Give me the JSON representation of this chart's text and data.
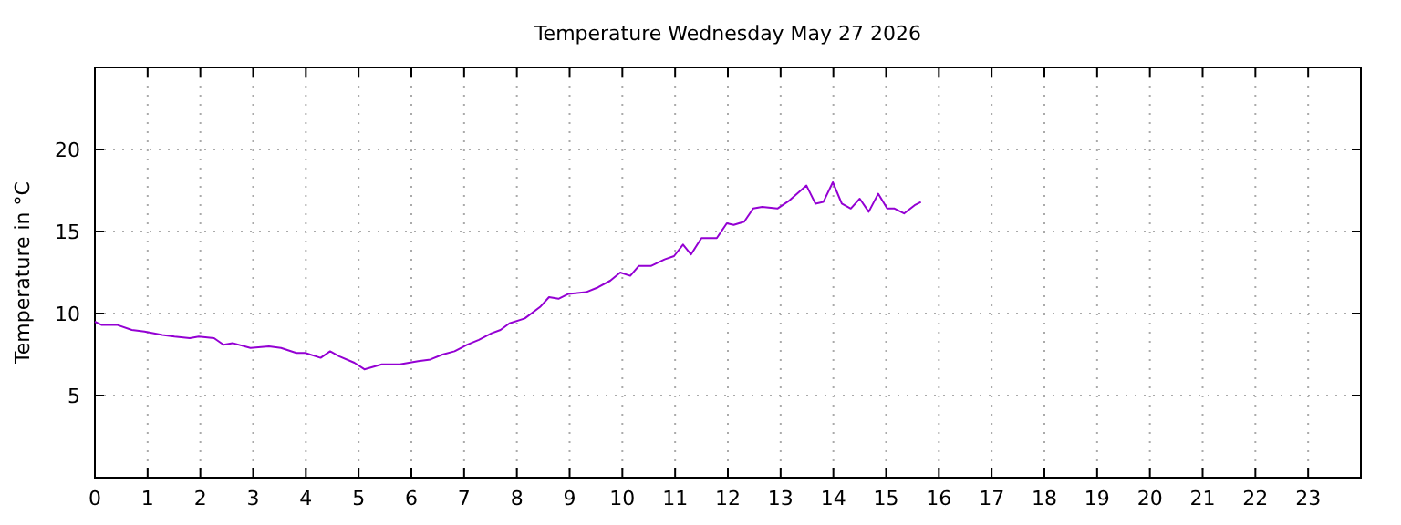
{
  "chart_data": {
    "type": "line",
    "title": "Temperature Wednesday May 27 2026",
    "ylabel": "Temperature in °C",
    "xlim": [
      0,
      24
    ],
    "ylim": [
      0,
      25
    ],
    "xticks": [
      0,
      1,
      2,
      3,
      4,
      5,
      6,
      7,
      8,
      9,
      10,
      11,
      12,
      13,
      14,
      15,
      16,
      17,
      18,
      19,
      20,
      21,
      22,
      23
    ],
    "yticks": [
      5,
      10,
      15,
      20
    ],
    "grid": true,
    "marker": "none",
    "line_style": "solid",
    "series": [
      {
        "color": "#9400d3",
        "x": [
          0,
          0.13,
          0.43,
          0.7,
          0.94,
          1.28,
          1.51,
          1.8,
          1.97,
          2.26,
          2.44,
          2.61,
          2.95,
          3.3,
          3.53,
          3.82,
          3.99,
          4.28,
          4.46,
          4.63,
          4.92,
          5.11,
          5.44,
          5.78,
          6.13,
          6.36,
          6.59,
          6.82,
          7.06,
          7.28,
          7.52,
          7.69,
          7.86,
          8.15,
          8.44,
          8.61,
          8.79,
          8.98,
          9.31,
          9.54,
          9.77,
          9.96,
          10.15,
          10.31,
          10.54,
          10.8,
          10.98,
          11.15,
          11.3,
          11.5,
          11.79,
          11.98,
          12.11,
          12.31,
          12.48,
          12.65,
          12.94,
          13.17,
          13.49,
          13.66,
          13.81,
          13.99,
          14.16,
          14.33,
          14.5,
          14.67,
          14.85,
          15.02,
          15.16,
          15.34,
          15.54,
          15.66
        ],
        "values": [
          9.5,
          9.3,
          9.3,
          9.0,
          8.9,
          8.7,
          8.6,
          8.5,
          8.6,
          8.5,
          8.1,
          8.2,
          7.9,
          8.0,
          7.9,
          7.6,
          7.6,
          7.3,
          7.7,
          7.4,
          7.0,
          6.6,
          6.9,
          6.9,
          7.1,
          7.2,
          7.5,
          7.7,
          8.1,
          8.4,
          8.8,
          9.0,
          9.4,
          9.7,
          10.4,
          11.0,
          10.9,
          11.2,
          11.3,
          11.6,
          12.0,
          12.5,
          12.3,
          12.9,
          12.9,
          13.3,
          13.5,
          14.2,
          13.6,
          14.6,
          14.6,
          15.5,
          15.4,
          15.6,
          16.4,
          16.5,
          16.4,
          16.9,
          17.8,
          16.7,
          16.8,
          18.0,
          16.7,
          16.4,
          17.0,
          16.2,
          17.3,
          16.4,
          16.4,
          16.1,
          16.6,
          16.8
        ]
      }
    ]
  }
}
